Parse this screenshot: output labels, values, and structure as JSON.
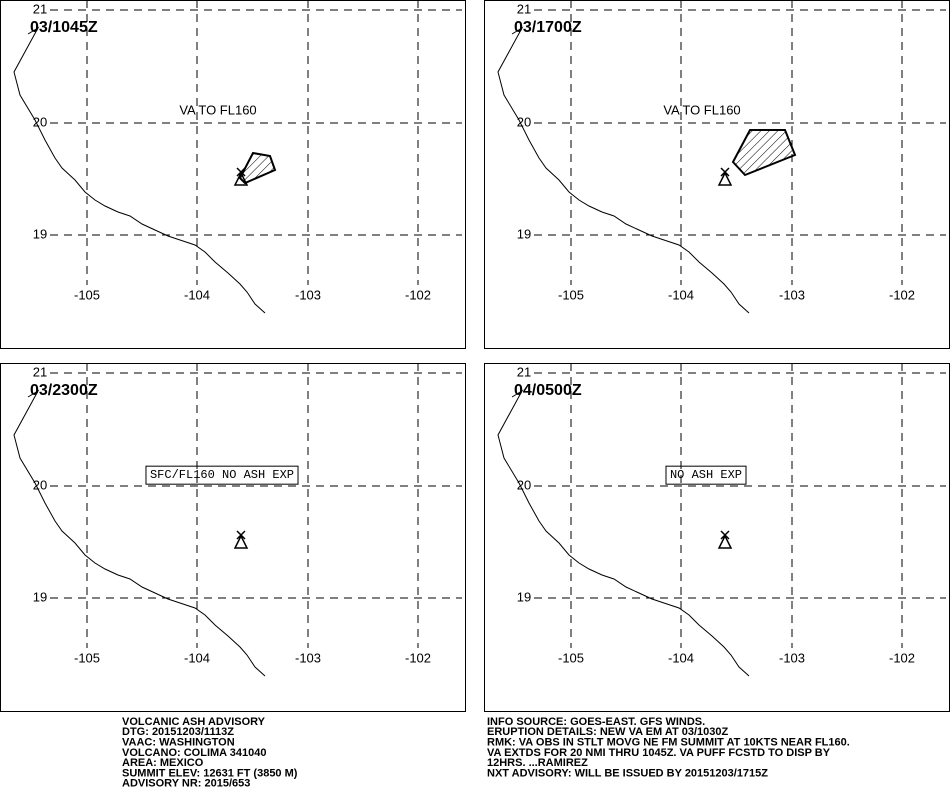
{
  "panels": [
    {
      "time": "03/1045Z",
      "annotation": "VA TO FL160"
    },
    {
      "time": "03/1700Z",
      "annotation": "VA TO FL160"
    },
    {
      "time": "03/2300Z",
      "annotation": "SFC/FL160 NO ASH EXP"
    },
    {
      "time": "04/0500Z",
      "annotation": "NO ASH EXP"
    }
  ],
  "lat_labels": [
    "21",
    "20",
    "19"
  ],
  "lon_labels": [
    "-105",
    "-104",
    "-103",
    "-102"
  ],
  "info_left": [
    "VOLCANIC ASH ADVISORY",
    "DTG: 20151203/1113Z",
    "VAAC: WASHINGTON",
    "VOLCANO: COLIMA 341040",
    "AREA: MEXICO",
    "SUMMIT ELEV: 12631 FT (3850 M)",
    "ADVISORY NR: 2015/653"
  ],
  "info_right": [
    "INFO SOURCE: GOES-EAST. GFS WINDS.",
    "ERUPTION DETAILS: NEW VA EM AT 03/1030Z",
    "RMK: VA OBS IN STLT MOVG NE FM SUMMIT AT 10KTS NEAR FL160.",
    "VA EXTDS FOR 20 NMI THRU 1045Z. VA PUFF FCSTD TO DISP BY",
    "12HRS. ...RAMIREZ",
    "NXT ADVISORY: WILL BE ISSUED BY 20151203/1715Z"
  ]
}
